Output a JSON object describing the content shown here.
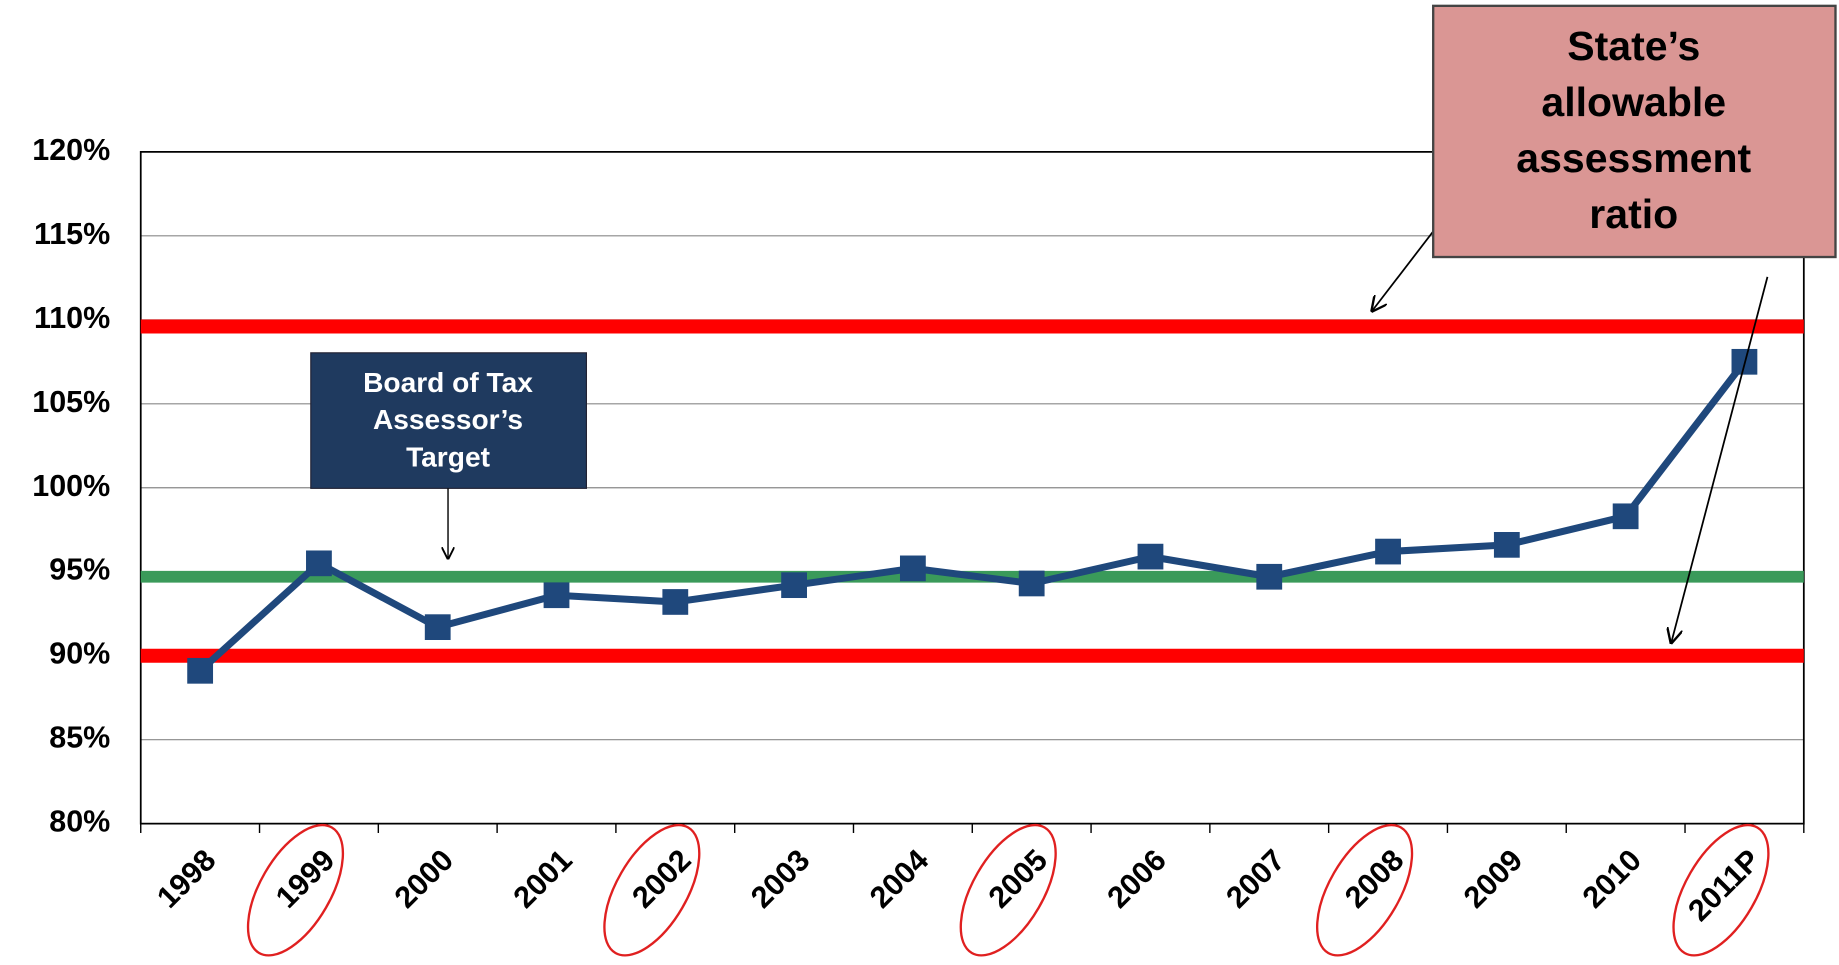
{
  "chart_data": {
    "type": "line",
    "categories": [
      "1998",
      "1999",
      "2000",
      "2001",
      "2002",
      "2003",
      "2004",
      "2005",
      "2006",
      "2007",
      "2008",
      "2009",
      "2010",
      "2011P"
    ],
    "values": [
      89.1,
      95.5,
      91.7,
      93.6,
      93.2,
      94.2,
      95.2,
      94.3,
      95.9,
      94.7,
      96.2,
      96.6,
      98.3,
      107.5
    ],
    "color": "#1f487c",
    "ylim": [
      80,
      120
    ],
    "yticks": [
      {
        "value": 80,
        "label": "80%"
      },
      {
        "value": 85,
        "label": "85%"
      },
      {
        "value": 90,
        "label": "90%"
      },
      {
        "value": 95,
        "label": "95%"
      },
      {
        "value": 100,
        "label": "100%"
      },
      {
        "value": 105,
        "label": "105%"
      },
      {
        "value": 110,
        "label": "110%"
      },
      {
        "value": 115,
        "label": "115%"
      },
      {
        "value": 120,
        "label": "120%"
      }
    ],
    "grid": true,
    "highlighted": [
      1,
      4,
      7,
      10,
      13
    ],
    "highlight_color": "#e02020",
    "reference_lines": [
      {
        "value": 109.6,
        "color": "#ff0000"
      },
      {
        "value": 90,
        "color": "#ff0000"
      },
      {
        "value": 94.7,
        "color": "#3a9a5a"
      }
    ],
    "annotations": [
      {
        "lines": [
          "State’s",
          "allowable",
          "assessment",
          "ratio"
        ],
        "color": "#da9694",
        "text_color": "#000000"
      },
      {
        "lines": [
          "Board of Tax",
          "Assessor’s",
          "Target"
        ],
        "color": "#1f3a5f",
        "text_color": "#ffffff"
      }
    ]
  }
}
